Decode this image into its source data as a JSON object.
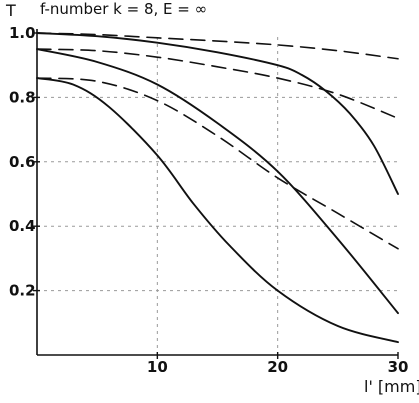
{
  "chart_data": {
    "type": "line",
    "title": "f-number k = 8, E = ∞",
    "ylabel": "T",
    "xlabel": "l' [mm]",
    "xlim": [
      0,
      30
    ],
    "ylim": [
      0,
      1.0
    ],
    "xticks": [
      {
        "value": 10,
        "label": "10"
      },
      {
        "value": 20,
        "label": "20"
      },
      {
        "value": 30,
        "label": "30"
      }
    ],
    "yticks": [
      {
        "value": 0.2,
        "label": "0.2"
      },
      {
        "value": 0.4,
        "label": "0.4"
      },
      {
        "value": 0.6,
        "label": "0.6"
      },
      {
        "value": 0.8,
        "label": "0.8"
      },
      {
        "value": 1.0,
        "label": "1.0"
      }
    ],
    "grid": true,
    "series": [
      {
        "style": "dashed",
        "x": [
          0,
          5,
          10,
          15,
          20,
          25,
          30
        ],
        "y": [
          1.0,
          0.995,
          0.985,
          0.975,
          0.963,
          0.945,
          0.92
        ]
      },
      {
        "style": "solid",
        "x": [
          0,
          5,
          10,
          15,
          20,
          22,
          24,
          26,
          28,
          30
        ],
        "y": [
          1.0,
          0.99,
          0.97,
          0.94,
          0.9,
          0.87,
          0.82,
          0.75,
          0.65,
          0.5
        ]
      },
      {
        "style": "dashed",
        "x": [
          0,
          5,
          10,
          15,
          20,
          25,
          30
        ],
        "y": [
          0.95,
          0.945,
          0.925,
          0.895,
          0.86,
          0.81,
          0.735
        ]
      },
      {
        "style": "solid",
        "x": [
          0,
          5,
          10,
          15,
          20,
          25,
          30
        ],
        "y": [
          0.95,
          0.91,
          0.84,
          0.72,
          0.57,
          0.36,
          0.13
        ]
      },
      {
        "style": "dashed",
        "x": [
          0,
          5,
          10,
          15,
          20,
          25,
          30
        ],
        "y": [
          0.86,
          0.85,
          0.79,
          0.68,
          0.55,
          0.44,
          0.33
        ]
      },
      {
        "style": "solid",
        "x": [
          0,
          3,
          6,
          10,
          13,
          16,
          20,
          25,
          30
        ],
        "y": [
          0.86,
          0.84,
          0.77,
          0.62,
          0.47,
          0.34,
          0.2,
          0.09,
          0.04
        ]
      }
    ]
  }
}
